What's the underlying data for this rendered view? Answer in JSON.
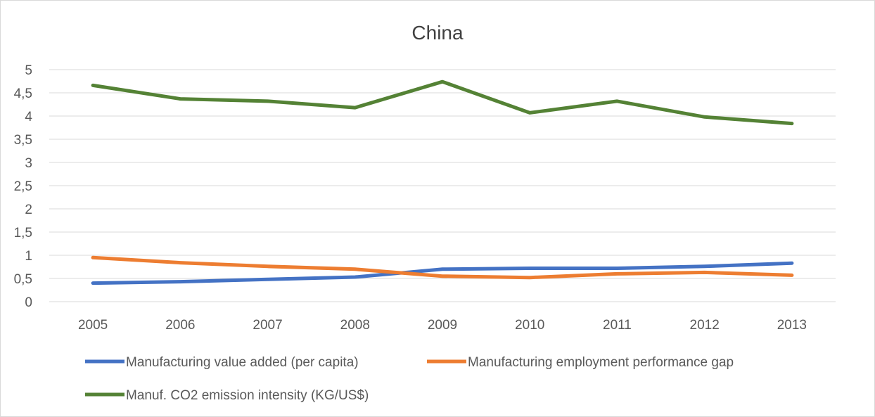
{
  "chart_data": {
    "type": "line",
    "title": "China",
    "xlabel": "",
    "ylabel": "",
    "x": [
      "2005",
      "2006",
      "2007",
      "2008",
      "2009",
      "2010",
      "2011",
      "2012",
      "2013"
    ],
    "yticks": [
      "0",
      "0,5",
      "1",
      "1,5",
      "2",
      "2,5",
      "3",
      "3,5",
      "4",
      "4,5",
      "5"
    ],
    "ylim": [
      0,
      5
    ],
    "grid": true,
    "legend_position": "bottom",
    "series": [
      {
        "name": "Manufacturing value added (per capita)",
        "color": "#4472c4",
        "values": [
          0.4,
          0.43,
          0.48,
          0.53,
          0.7,
          0.72,
          0.72,
          0.76,
          0.83
        ]
      },
      {
        "name": "Manufacturing employment performance gap",
        "color": "#ed7d31",
        "values": [
          0.95,
          0.84,
          0.76,
          0.7,
          0.55,
          0.52,
          0.6,
          0.63,
          0.57
        ]
      },
      {
        "name": "Manuf. CO2 emission intensity (KG/US$)",
        "color": "#548235",
        "values": [
          4.66,
          4.37,
          4.32,
          4.18,
          4.74,
          4.07,
          4.32,
          3.98,
          3.84
        ]
      }
    ]
  }
}
